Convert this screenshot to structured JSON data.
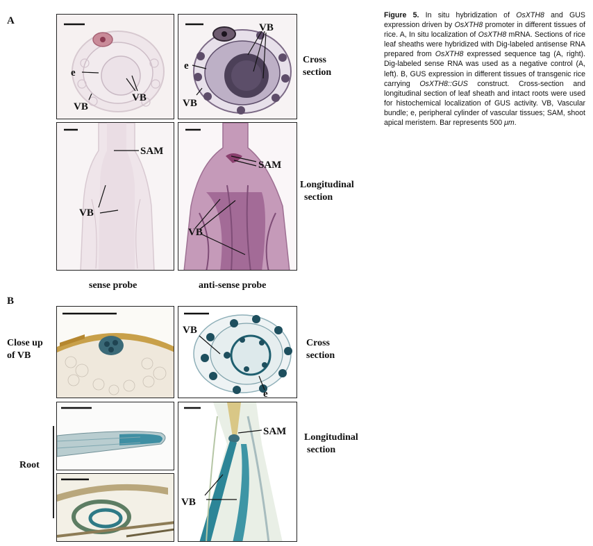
{
  "panel_a": {
    "letter": "A",
    "row1_label_line1": "Cross",
    "row1_label_line2": "section",
    "row2_label_line1": "Longitudinal",
    "row2_label_line2": "section",
    "col1_label": "sense probe",
    "col2_label": "anti-sense probe",
    "annotations": {
      "e": "e",
      "vb": "VB",
      "sam": "SAM"
    }
  },
  "panel_b": {
    "letter": "B",
    "close_up_line1": "Close up",
    "close_up_line2": "of VB",
    "root_label": "Root",
    "row1_label_line1": "Cross",
    "row1_label_line2": "section",
    "row2_label_line1": "Longitudinal",
    "row2_label_line2": "section",
    "annotations": {
      "e": "e",
      "vb": "VB",
      "sam": "SAM"
    }
  },
  "caption": {
    "figure_label": "Figure 5.",
    "seg1": " In situ hybridization of ",
    "gene1": "OsXTH8",
    "seg2": " and GUS expression driven by ",
    "gene2": "OsXTH8",
    "seg3": " promoter in different tissues of rice. A, In situ localization of ",
    "gene3": "OsXTH8",
    "seg4": " mRNA. Sections of rice leaf sheaths were hybridized with Dig-labeled antisense RNA prepared from ",
    "gene4": "OsXTH8",
    "seg5": " expressed sequence tag (A, right). Dig-labeled sense RNA was used as a negative control (A, left). B, GUS expression in different tissues of transgenic rice carrying ",
    "gene5": "OsXTH8::GUS",
    "seg6": " construct. Cross-section and longitudinal section of leaf sheath and intact roots were used for histochemical localization of GUS activity. VB, Vascular bundle; e, peripheral cylinder of vascular tissues; SAM, shoot apical meristem. Bar represents 500 ",
    "unit": "μm",
    "seg7": "."
  }
}
